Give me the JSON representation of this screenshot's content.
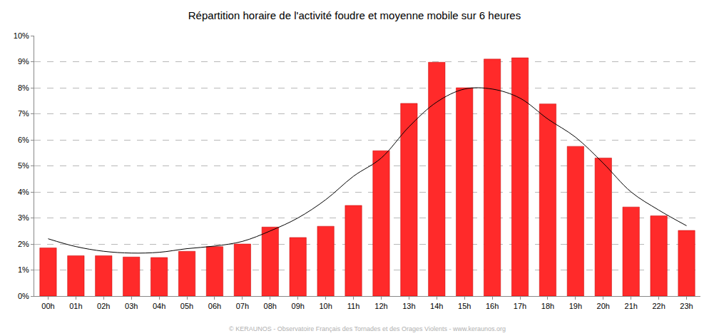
{
  "chart_data": {
    "type": "bar",
    "title": "Répartition horaire de l'activité foudre et moyenne mobile sur 6 heures",
    "annotations": [
      "© KERAUNOS - Observatoire Français des Tornades et des Orages Violents - www.keraunos.org"
    ],
    "categories": [
      "00h",
      "01h",
      "02h",
      "03h",
      "04h",
      "05h",
      "06h",
      "07h",
      "08h",
      "09h",
      "10h",
      "11h",
      "12h",
      "13h",
      "14h",
      "15h",
      "16h",
      "17h",
      "18h",
      "19h",
      "20h",
      "21h",
      "22h",
      "23h"
    ],
    "series": [
      {
        "type": "bar",
        "color": "#ff2a2a",
        "values": [
          1.85,
          1.55,
          1.55,
          1.5,
          1.48,
          1.72,
          1.9,
          2.0,
          2.65,
          2.25,
          2.68,
          3.48,
          5.58,
          7.4,
          8.98,
          8.0,
          9.1,
          9.15,
          7.38,
          5.75,
          5.3,
          3.42,
          3.08,
          2.52
        ]
      },
      {
        "type": "line",
        "color": "#000000",
        "line_style": "spline",
        "values": [
          2.2,
          1.9,
          1.72,
          1.65,
          1.68,
          1.82,
          1.92,
          2.1,
          2.5,
          3.0,
          3.7,
          4.6,
          5.3,
          6.5,
          7.45,
          7.95,
          7.95,
          7.6,
          6.8,
          6.1,
          5.1,
          4.0,
          3.3,
          2.7
        ]
      }
    ],
    "ylim": [
      0,
      10
    ],
    "yticks": [
      {
        "value": 0,
        "label": "0%"
      },
      {
        "value": 1,
        "label": "1%"
      },
      {
        "value": 2,
        "label": "2%"
      },
      {
        "value": 3,
        "label": "3%"
      },
      {
        "value": 4,
        "label": "4%"
      },
      {
        "value": 5,
        "label": "5%"
      },
      {
        "value": 6,
        "label": "6%"
      },
      {
        "value": 7,
        "label": "7%"
      },
      {
        "value": 8,
        "label": "8%"
      },
      {
        "value": 9,
        "label": "9%"
      },
      {
        "value": 10,
        "label": "10%"
      }
    ],
    "grid": true
  }
}
